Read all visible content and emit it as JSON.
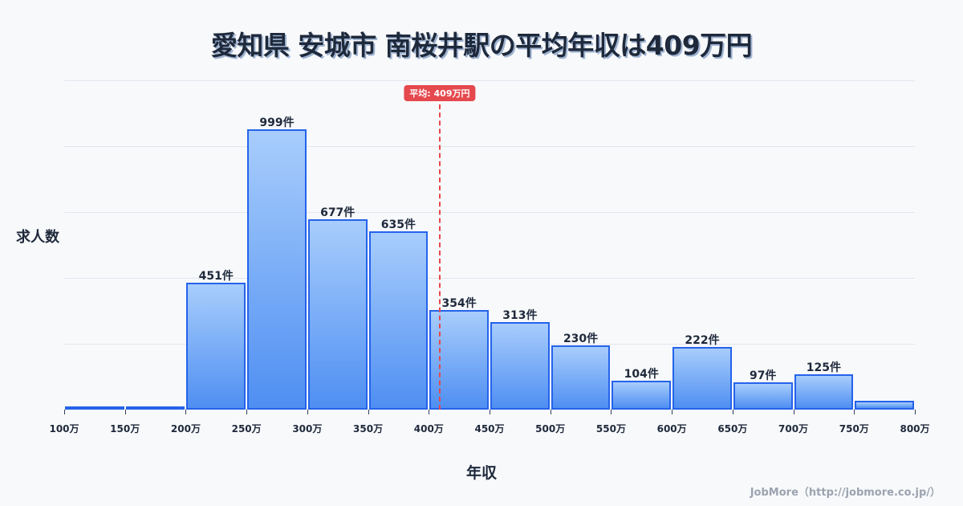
{
  "title": "愛知県 安城市 南桜井駅の平均年収は409万円",
  "axis": {
    "ylabel": "求人数",
    "xlabel": "年収"
  },
  "credit": "JobMore（http://jobmore.co.jp/）",
  "mean": {
    "value": 409,
    "label": "平均: 409万円",
    "color": "#e5484d"
  },
  "colors": {
    "bar_border": "#2563eb",
    "bar_top": "#a8cdfc",
    "bar_bottom": "#4f8ff2",
    "background": "#f8f9fb"
  },
  "chart_data": {
    "type": "bar",
    "title": "愛知県 安城市 南桜井駅の平均年収は409万円",
    "xlabel": "年収",
    "ylabel": "求人数",
    "categories": [
      "100-150万",
      "150-200万",
      "200-250万",
      "250-300万",
      "300-350万",
      "350-400万",
      "400-450万",
      "450-500万",
      "500-550万",
      "550-600万",
      "600-650万",
      "650-700万",
      "700-750万",
      "750-800万"
    ],
    "values": [
      5,
      12,
      451,
      999,
      677,
      635,
      354,
      313,
      230,
      104,
      222,
      97,
      125,
      31
    ],
    "value_labels": [
      "",
      "",
      "451件",
      "999件",
      "677件",
      "635件",
      "354件",
      "313件",
      "230件",
      "104件",
      "222件",
      "97件",
      "125件",
      ""
    ],
    "x_ticks": [
      "100万",
      "150万",
      "200万",
      "250万",
      "300万",
      "350万",
      "400万",
      "450万",
      "500万",
      "550万",
      "600万",
      "650万",
      "700万",
      "750万",
      "800万"
    ],
    "xlim": [
      100,
      800
    ],
    "ylim": [
      0,
      1174
    ],
    "grid": true,
    "annotations": [
      {
        "type": "vline",
        "x": 409,
        "label": "平均: 409万円"
      }
    ]
  }
}
